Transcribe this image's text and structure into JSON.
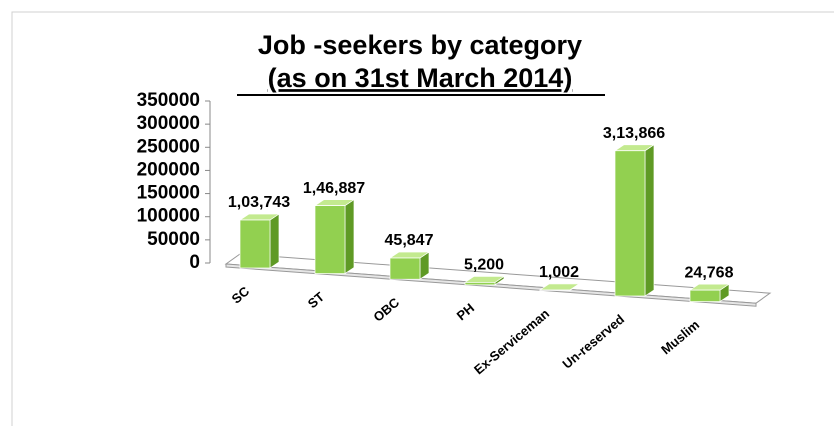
{
  "chart_data": {
    "type": "bar3d",
    "title": "Job -seekers by category",
    "subtitle": "(as on 31st March 2014)",
    "categories": [
      "SC",
      "ST",
      "OBC",
      "PH",
      "Ex-Serviceman",
      "Un-reserved",
      "Muslim"
    ],
    "values": [
      103743,
      146887,
      45847,
      5200,
      1002,
      313866,
      24768
    ],
    "value_labels": [
      "1,03,743",
      "1,46,887",
      "45,847",
      "5,200",
      "1,002",
      "3,13,866",
      "24,768"
    ],
    "color": "#92d050",
    "ylim": [
      0,
      350000
    ],
    "yticks": [
      0,
      50000,
      100000,
      150000,
      200000,
      250000,
      300000,
      350000
    ]
  }
}
